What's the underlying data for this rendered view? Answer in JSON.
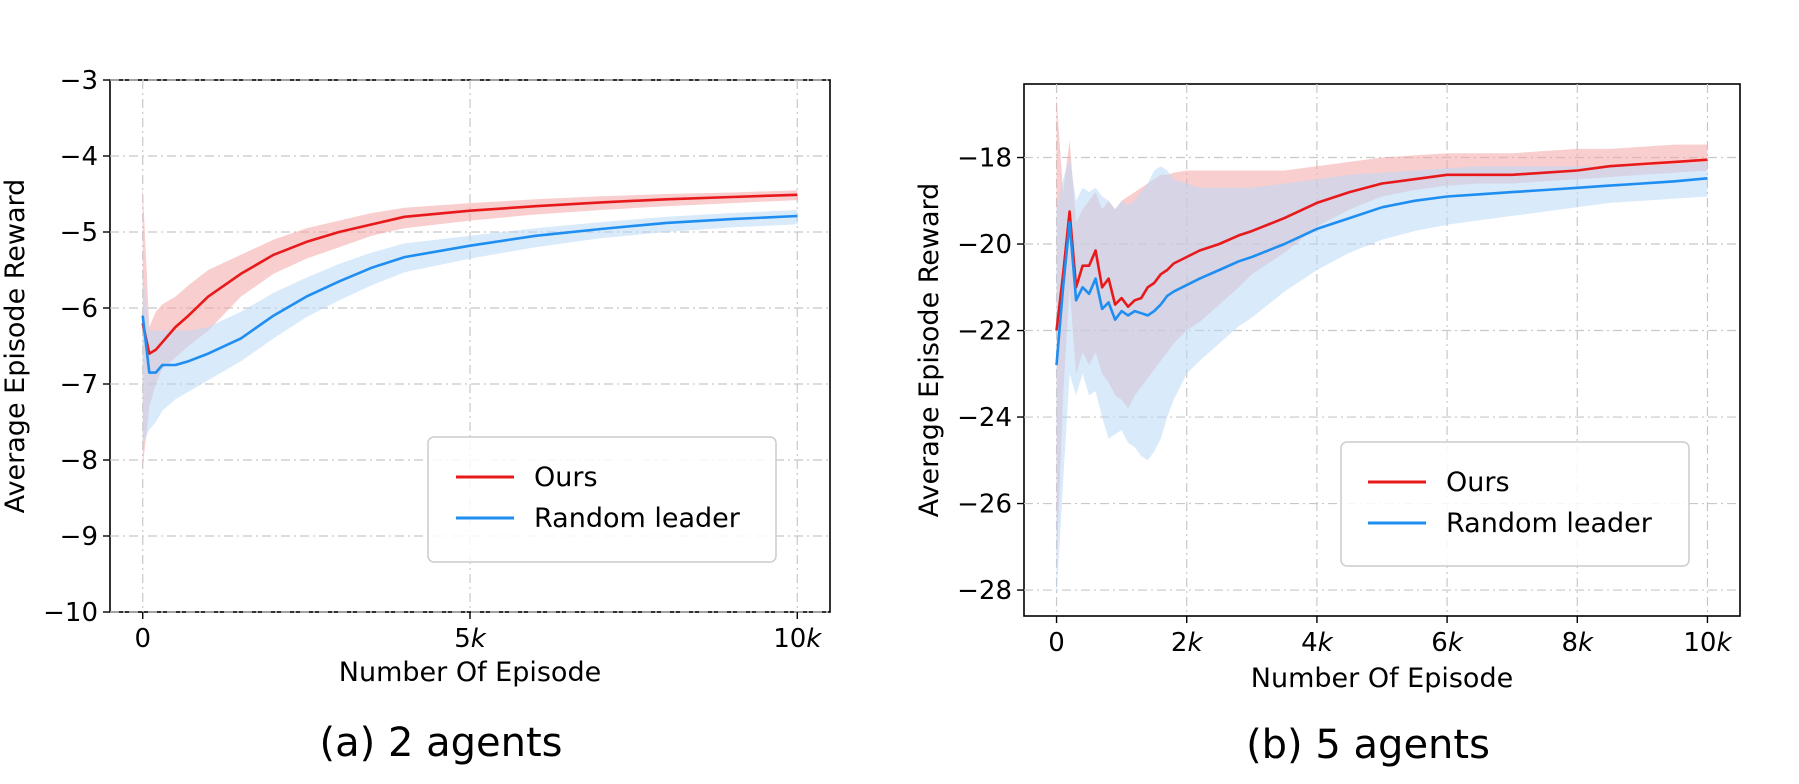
{
  "chart_data": [
    {
      "type": "line",
      "caption": "(a) 2 agents",
      "xlabel": "Number Of Episode",
      "ylabel": "Average Episode Reward",
      "xlim": [
        -500,
        10500
      ],
      "ylim": [
        -10,
        -3
      ],
      "xticks": [
        0,
        5000,
        10000
      ],
      "xtick_labels": [
        "0",
        "5k",
        "10k"
      ],
      "yticks": [
        -10,
        -9,
        -8,
        -7,
        -6,
        -5,
        -4,
        -3
      ],
      "ytick_labels": [
        "−10",
        "−9",
        "−8",
        "−7",
        "−6",
        "−5",
        "−4",
        "−3"
      ],
      "grid": true,
      "legend": {
        "position": "lower-right",
        "entries": [
          "Ours",
          "Random leader"
        ]
      },
      "series": [
        {
          "name": "Ours",
          "color": "#e8191a",
          "band_color": "#f4a6a6",
          "x": [
            0,
            100,
            200,
            300,
            500,
            700,
            1000,
            1500,
            2000,
            2500,
            3000,
            3500,
            4000,
            5000,
            6000,
            7000,
            8000,
            9000,
            10000
          ],
          "y": [
            -6.2,
            -6.6,
            -6.55,
            -6.45,
            -6.25,
            -6.1,
            -5.85,
            -5.55,
            -5.3,
            -5.13,
            -5.0,
            -4.9,
            -4.8,
            -4.72,
            -4.66,
            -4.61,
            -4.57,
            -4.54,
            -4.51
          ],
          "upper": [
            -4.4,
            -6.25,
            -6.05,
            -5.95,
            -5.85,
            -5.7,
            -5.5,
            -5.3,
            -5.1,
            -4.95,
            -4.85,
            -4.75,
            -4.68,
            -4.62,
            -4.57,
            -4.53,
            -4.5,
            -4.48,
            -4.45
          ],
          "lower": [
            -8.1,
            -7.3,
            -7.0,
            -6.8,
            -6.65,
            -6.5,
            -6.3,
            -5.85,
            -5.55,
            -5.35,
            -5.2,
            -5.05,
            -4.95,
            -4.85,
            -4.77,
            -4.71,
            -4.66,
            -4.62,
            -4.58
          ]
        },
        {
          "name": "Random leader",
          "color": "#1f8ef1",
          "band_color": "#b9d9f7",
          "x": [
            0,
            100,
            200,
            300,
            500,
            700,
            1000,
            1500,
            2000,
            2500,
            3000,
            3500,
            4000,
            5000,
            6000,
            7000,
            8000,
            9000,
            10000
          ],
          "y": [
            -6.1,
            -6.85,
            -6.85,
            -6.75,
            -6.75,
            -6.7,
            -6.6,
            -6.4,
            -6.1,
            -5.85,
            -5.65,
            -5.47,
            -5.33,
            -5.18,
            -5.05,
            -4.96,
            -4.88,
            -4.83,
            -4.79
          ],
          "upper": [
            -5.5,
            -6.3,
            -6.3,
            -6.3,
            -6.3,
            -6.3,
            -6.25,
            -6.05,
            -5.8,
            -5.6,
            -5.42,
            -5.27,
            -5.15,
            -5.05,
            -4.95,
            -4.87,
            -4.8,
            -4.75,
            -4.71
          ],
          "lower": [
            -7.8,
            -7.6,
            -7.5,
            -7.35,
            -7.2,
            -7.1,
            -6.95,
            -6.7,
            -6.4,
            -6.12,
            -5.9,
            -5.7,
            -5.53,
            -5.35,
            -5.2,
            -5.08,
            -5.0,
            -4.94,
            -4.9
          ]
        }
      ]
    },
    {
      "type": "line",
      "caption": "(b) 5 agents",
      "xlabel": "Number Of Episode",
      "ylabel": "Average Episode Reward",
      "xlim": [
        -500,
        10500
      ],
      "ylim": [
        -28.6,
        -16.3
      ],
      "xticks": [
        0,
        2000,
        4000,
        6000,
        8000,
        10000
      ],
      "xtick_labels": [
        "0",
        "2k",
        "4k",
        "6k",
        "8k",
        "10k"
      ],
      "yticks": [
        -28,
        -26,
        -24,
        -22,
        -20,
        -18
      ],
      "ytick_labels": [
        "−28",
        "−26",
        "−24",
        "−22",
        "−20",
        "−18"
      ],
      "grid": true,
      "legend": {
        "position": "lower-right",
        "entries": [
          "Ours",
          "Random leader"
        ]
      },
      "series": [
        {
          "name": "Ours",
          "color": "#e8191a",
          "band_color": "#f4a6a6",
          "x": [
            0,
            100,
            200,
            300,
            400,
            500,
            600,
            700,
            800,
            900,
            1000,
            1100,
            1200,
            1300,
            1400,
            1500,
            1600,
            1700,
            1800,
            2000,
            2200,
            2500,
            2800,
            3000,
            3500,
            4000,
            4500,
            5000,
            5500,
            6000,
            6500,
            7000,
            7500,
            8000,
            8500,
            9000,
            9500,
            10000
          ],
          "y": [
            -22.0,
            -20.7,
            -19.25,
            -21.0,
            -20.5,
            -20.5,
            -20.15,
            -21.0,
            -20.8,
            -21.4,
            -21.25,
            -21.45,
            -21.3,
            -21.25,
            -21.0,
            -20.9,
            -20.7,
            -20.6,
            -20.45,
            -20.3,
            -20.15,
            -20.0,
            -19.8,
            -19.7,
            -19.4,
            -19.05,
            -18.8,
            -18.6,
            -18.5,
            -18.4,
            -18.4,
            -18.4,
            -18.35,
            -18.3,
            -18.2,
            -18.15,
            -18.1,
            -18.05
          ],
          "upper": [
            -16.6,
            -18.8,
            -17.6,
            -19.5,
            -19.2,
            -19.0,
            -18.8,
            -19.2,
            -19.0,
            -19.2,
            -19.0,
            -18.9,
            -18.8,
            -18.7,
            -18.6,
            -18.5,
            -18.4,
            -18.4,
            -18.35,
            -18.3,
            -18.3,
            -18.3,
            -18.3,
            -18.3,
            -18.3,
            -18.2,
            -18.1,
            -18.0,
            -17.95,
            -17.9,
            -17.9,
            -17.9,
            -17.85,
            -17.8,
            -17.8,
            -17.75,
            -17.7,
            -17.7
          ],
          "lower": [
            -27.5,
            -23.5,
            -21.0,
            -23.0,
            -22.5,
            -22.8,
            -22.5,
            -23.0,
            -23.2,
            -23.5,
            -23.6,
            -23.8,
            -23.5,
            -23.3,
            -23.1,
            -22.9,
            -22.7,
            -22.5,
            -22.3,
            -22.0,
            -21.8,
            -21.4,
            -21.0,
            -20.7,
            -20.2,
            -19.6,
            -19.2,
            -18.9,
            -18.75,
            -18.65,
            -18.6,
            -18.6,
            -18.55,
            -18.5,
            -18.45,
            -18.4,
            -18.35,
            -18.3
          ]
        },
        {
          "name": "Random leader",
          "color": "#1f8ef1",
          "band_color": "#b9d9f7",
          "x": [
            0,
            100,
            200,
            300,
            400,
            500,
            600,
            700,
            800,
            900,
            1000,
            1100,
            1200,
            1300,
            1400,
            1500,
            1600,
            1700,
            1800,
            2000,
            2200,
            2500,
            2800,
            3000,
            3500,
            4000,
            4500,
            5000,
            5500,
            6000,
            6500,
            7000,
            7500,
            8000,
            8500,
            9000,
            9500,
            10000
          ],
          "y": [
            -22.8,
            -21.0,
            -19.5,
            -21.3,
            -21.0,
            -21.15,
            -20.8,
            -21.5,
            -21.35,
            -21.75,
            -21.55,
            -21.65,
            -21.55,
            -21.6,
            -21.65,
            -21.55,
            -21.4,
            -21.2,
            -21.1,
            -20.95,
            -20.8,
            -20.6,
            -20.4,
            -20.3,
            -20.0,
            -19.65,
            -19.4,
            -19.15,
            -19.0,
            -18.9,
            -18.85,
            -18.8,
            -18.75,
            -18.7,
            -18.65,
            -18.6,
            -18.55,
            -18.48
          ],
          "upper": [
            -19.2,
            -18.5,
            -18.0,
            -19.0,
            -18.7,
            -18.8,
            -18.7,
            -18.9,
            -19.0,
            -19.2,
            -19.0,
            -19.1,
            -19.0,
            -18.8,
            -18.6,
            -18.3,
            -18.2,
            -18.3,
            -18.5,
            -18.6,
            -18.7,
            -18.7,
            -18.7,
            -18.7,
            -18.6,
            -18.5,
            -18.4,
            -18.35,
            -18.3,
            -18.25,
            -18.2,
            -18.2,
            -18.2,
            -18.2,
            -18.2,
            -18.2,
            -18.15,
            -18.1
          ],
          "lower": [
            -28.2,
            -25.5,
            -23.0,
            -23.5,
            -23.0,
            -23.5,
            -23.4,
            -24.0,
            -24.5,
            -24.4,
            -24.3,
            -24.6,
            -24.7,
            -24.9,
            -25.0,
            -24.8,
            -24.5,
            -24.0,
            -23.6,
            -23.0,
            -22.7,
            -22.3,
            -21.9,
            -21.7,
            -21.1,
            -20.6,
            -20.2,
            -19.9,
            -19.7,
            -19.55,
            -19.45,
            -19.35,
            -19.25,
            -19.15,
            -19.05,
            -19.0,
            -18.95,
            -18.9
          ]
        }
      ]
    }
  ]
}
